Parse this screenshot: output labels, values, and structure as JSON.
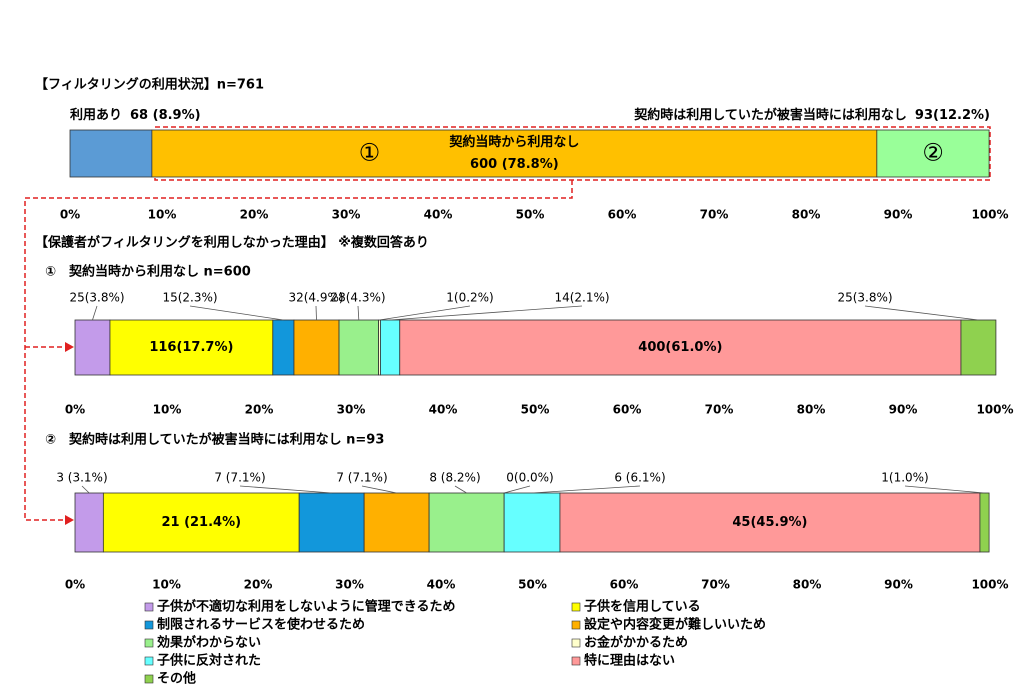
{
  "chart_data": [
    {
      "type": "bar",
      "orientation": "horizontal",
      "stacked": true,
      "title": "【フィルタリングの利用状況】n=761",
      "series": [
        {
          "name": "利用あり",
          "color": "#5b9bd5",
          "values": [
            8.9
          ],
          "value_labels": [
            "68 (8.9%)"
          ]
        },
        {
          "name": "契約当時から利用なし",
          "color": "#ffc000",
          "values": [
            78.8
          ],
          "value_labels": [
            "600 (78.8%)"
          ],
          "marker": "①"
        },
        {
          "name": "契約時は利用していたが被害当時には利用なし",
          "color": "#99ff99",
          "values": [
            12.2
          ],
          "value_labels": [
            "93(12.2%)"
          ],
          "marker": "②"
        }
      ],
      "xlim": [
        0,
        100
      ],
      "xticks": [
        {
          "value": 0,
          "label": "0%"
        },
        {
          "value": 10,
          "label": "10%"
        },
        {
          "value": 20,
          "label": "20%"
        },
        {
          "value": 30,
          "label": "30%"
        },
        {
          "value": 40,
          "label": "40%"
        },
        {
          "value": 50,
          "label": "50%"
        },
        {
          "value": 60,
          "label": "60%"
        },
        {
          "value": 70,
          "label": "70%"
        },
        {
          "value": 80,
          "label": "80%"
        },
        {
          "value": 90,
          "label": "90%"
        },
        {
          "value": 100,
          "label": "100%"
        }
      ]
    },
    {
      "type": "bar",
      "orientation": "horizontal",
      "stacked": true,
      "heading": "【保護者がフィルタリングを利用しなかった理由】 ※複数回答あり",
      "title": "①　契約当時から利用なし n=600",
      "series": [
        {
          "color": "#c39bea",
          "values": [
            3.8
          ],
          "value_labels": [
            "25(3.8%)"
          ]
        },
        {
          "color": "#ffff00",
          "values": [
            17.7
          ],
          "value_labels": [
            "116(17.7%)"
          ]
        },
        {
          "color": "#1297db",
          "values": [
            2.3
          ],
          "value_labels": [
            "15(2.3%)"
          ]
        },
        {
          "color": "#ffb000",
          "values": [
            4.9
          ],
          "value_labels": [
            "32(4.9%)"
          ]
        },
        {
          "color": "#99f08c",
          "values": [
            4.3
          ],
          "value_labels": [
            "28(4.3%)"
          ]
        },
        {
          "color": "#ffffcc",
          "values": [
            0.2
          ],
          "value_labels": [
            "1(0.2%)"
          ]
        },
        {
          "color": "#66ffff",
          "values": [
            2.1
          ],
          "value_labels": [
            "14(2.1%)"
          ]
        },
        {
          "color": "#ff9999",
          "values": [
            61.0
          ],
          "value_labels": [
            "400(61.0%)"
          ]
        },
        {
          "color": "#8fd14f",
          "values": [
            3.8
          ],
          "value_labels": [
            "25(3.8%)"
          ]
        }
      ],
      "xlim": [
        0,
        100
      ],
      "xticks": [
        {
          "value": 0,
          "label": "0%"
        },
        {
          "value": 10,
          "label": "10%"
        },
        {
          "value": 20,
          "label": "20%"
        },
        {
          "value": 30,
          "label": "30%"
        },
        {
          "value": 40,
          "label": "40%"
        },
        {
          "value": 50,
          "label": "50%"
        },
        {
          "value": 60,
          "label": "60%"
        },
        {
          "value": 70,
          "label": "70%"
        },
        {
          "value": 80,
          "label": "80%"
        },
        {
          "value": 90,
          "label": "90%"
        },
        {
          "value": 100,
          "label": "100%"
        }
      ]
    },
    {
      "type": "bar",
      "orientation": "horizontal",
      "stacked": true,
      "title": "②　契約時は利用していたが被害当時には利用なし n=93",
      "series": [
        {
          "name": "子供が不適切な利用をしないように管理できるため",
          "color": "#c39bea",
          "values": [
            3.1
          ],
          "value_labels": [
            "3 (3.1%)"
          ]
        },
        {
          "name": "子供を信用している",
          "color": "#ffff00",
          "values": [
            21.4
          ],
          "value_labels": [
            "21 (21.4%)"
          ]
        },
        {
          "name": "制限されるサービスを使わせるため",
          "color": "#1297db",
          "values": [
            7.1
          ],
          "value_labels": [
            "7 (7.1%)"
          ]
        },
        {
          "name": "設定や内容変更が難しいいため",
          "color": "#ffb000",
          "values": [
            7.1
          ],
          "value_labels": [
            "7 (7.1%)"
          ]
        },
        {
          "name": "効果がわからない",
          "color": "#99f08c",
          "values": [
            8.2
          ],
          "value_labels": [
            "8 (8.2%)"
          ]
        },
        {
          "name": "お金がかかるため",
          "color": "#ffffcc",
          "values": [
            0.0
          ],
          "value_labels": [
            "0(0.0%)"
          ]
        },
        {
          "name": "子供に反対された",
          "color": "#66ffff",
          "values": [
            6.1
          ],
          "value_labels": [
            "6 (6.1%)"
          ]
        },
        {
          "name": "特に理由はない",
          "color": "#ff9999",
          "values": [
            45.9
          ],
          "value_labels": [
            "45(45.9%)"
          ]
        },
        {
          "name": "その他",
          "color": "#8fd14f",
          "values": [
            1.0
          ],
          "value_labels": [
            "1(1.0%)"
          ]
        }
      ],
      "xlim": [
        0,
        100
      ],
      "xticks": [
        {
          "value": 0,
          "label": "0%"
        },
        {
          "value": 10,
          "label": "10%"
        },
        {
          "value": 20,
          "label": "20%"
        },
        {
          "value": 30,
          "label": "30%"
        },
        {
          "value": 40,
          "label": "40%"
        },
        {
          "value": 50,
          "label": "50%"
        },
        {
          "value": 60,
          "label": "60%"
        },
        {
          "value": 70,
          "label": "70%"
        },
        {
          "value": 80,
          "label": "80%"
        },
        {
          "value": 90,
          "label": "90%"
        },
        {
          "value": 100,
          "label": "100%"
        }
      ],
      "legend": true
    }
  ]
}
